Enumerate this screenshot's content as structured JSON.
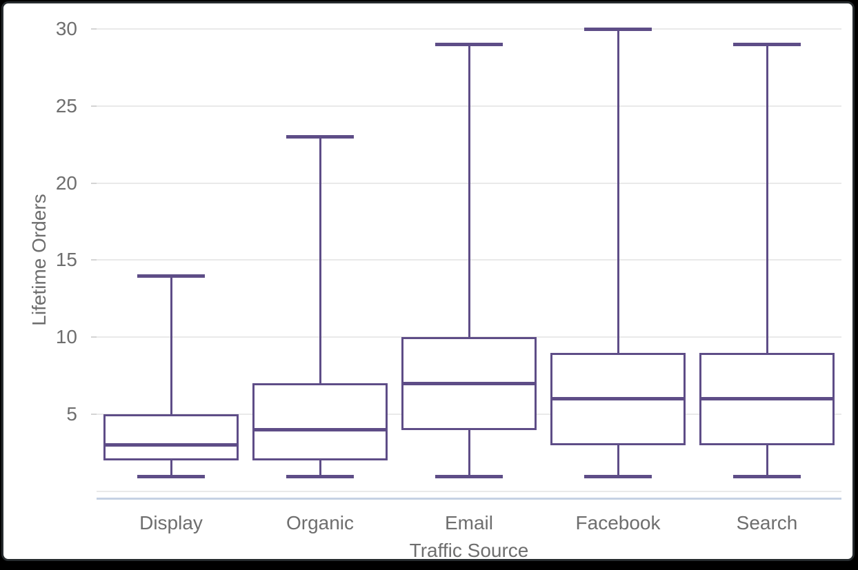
{
  "chart_data": {
    "type": "boxplot",
    "title": "",
    "xlabel": "Traffic Source",
    "ylabel": "Lifetime Orders",
    "categories": [
      "Display",
      "Organic",
      "Email",
      "Facebook",
      "Search"
    ],
    "series": [
      {
        "name": "Display",
        "min": 1,
        "q1": 2,
        "median": 3,
        "q3": 5,
        "max": 14
      },
      {
        "name": "Organic",
        "min": 1,
        "q1": 2,
        "median": 4,
        "q3": 7,
        "max": 23
      },
      {
        "name": "Email",
        "min": 1,
        "q1": 4,
        "median": 7,
        "q3": 10,
        "max": 29
      },
      {
        "name": "Facebook",
        "min": 1,
        "q1": 3,
        "median": 6,
        "q3": 9,
        "max": 30
      },
      {
        "name": "Search",
        "min": 1,
        "q1": 3,
        "median": 6,
        "q3": 9,
        "max": 29
      }
    ],
    "y_ticks": [
      5,
      10,
      15,
      20,
      25,
      30
    ],
    "ylim": [
      0,
      31
    ],
    "grid": true,
    "legend": false,
    "colors": {
      "box_stroke": "#5e4d87",
      "box_fill": "#ffffff",
      "gridline": "#e9e9e9",
      "axis_line": "#c5d1e3",
      "text": "#6e6e6e",
      "frame": "#262b2e"
    }
  }
}
